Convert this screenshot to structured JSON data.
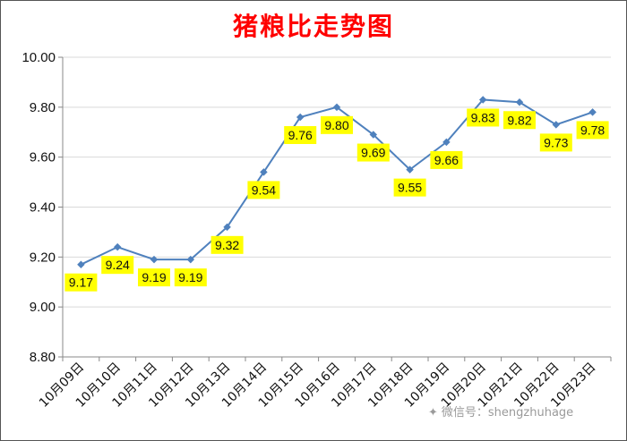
{
  "title": "猪粮比走势图",
  "watermark": "微信号：shengzhuhage",
  "colors": {
    "title": "#ff0000",
    "line": "#4f81bd",
    "label_bg": "#ffff00",
    "grid": "#d9d9d9"
  },
  "chart_data": {
    "type": "line",
    "title": "猪粮比走势图",
    "xlabel": "",
    "ylabel": "",
    "ylim": [
      8.8,
      10.0
    ],
    "yticks": [
      "8.80",
      "9.00",
      "9.20",
      "9.40",
      "9.60",
      "9.80",
      "10.00"
    ],
    "categories": [
      "10月09日",
      "10月10日",
      "10月11日",
      "10月12日",
      "10月13日",
      "10月14日",
      "10月15日",
      "10月16日",
      "10月17日",
      "10月18日",
      "10月19日",
      "10月20日",
      "10月21日",
      "10月22日",
      "10月23日"
    ],
    "series": [
      {
        "values": [
          9.17,
          9.24,
          9.19,
          9.19,
          9.32,
          9.54,
          9.76,
          9.8,
          9.69,
          9.55,
          9.66,
          9.83,
          9.82,
          9.73,
          9.78
        ],
        "labels": [
          "9.17",
          "9.24",
          "9.19",
          "9.19",
          "9.32",
          "9.54",
          "9.76",
          "9.80",
          "9.69",
          "9.55",
          "9.66",
          "9.83",
          "9.82",
          "9.73",
          "9.78"
        ]
      }
    ],
    "grid": true,
    "legend": "none"
  }
}
